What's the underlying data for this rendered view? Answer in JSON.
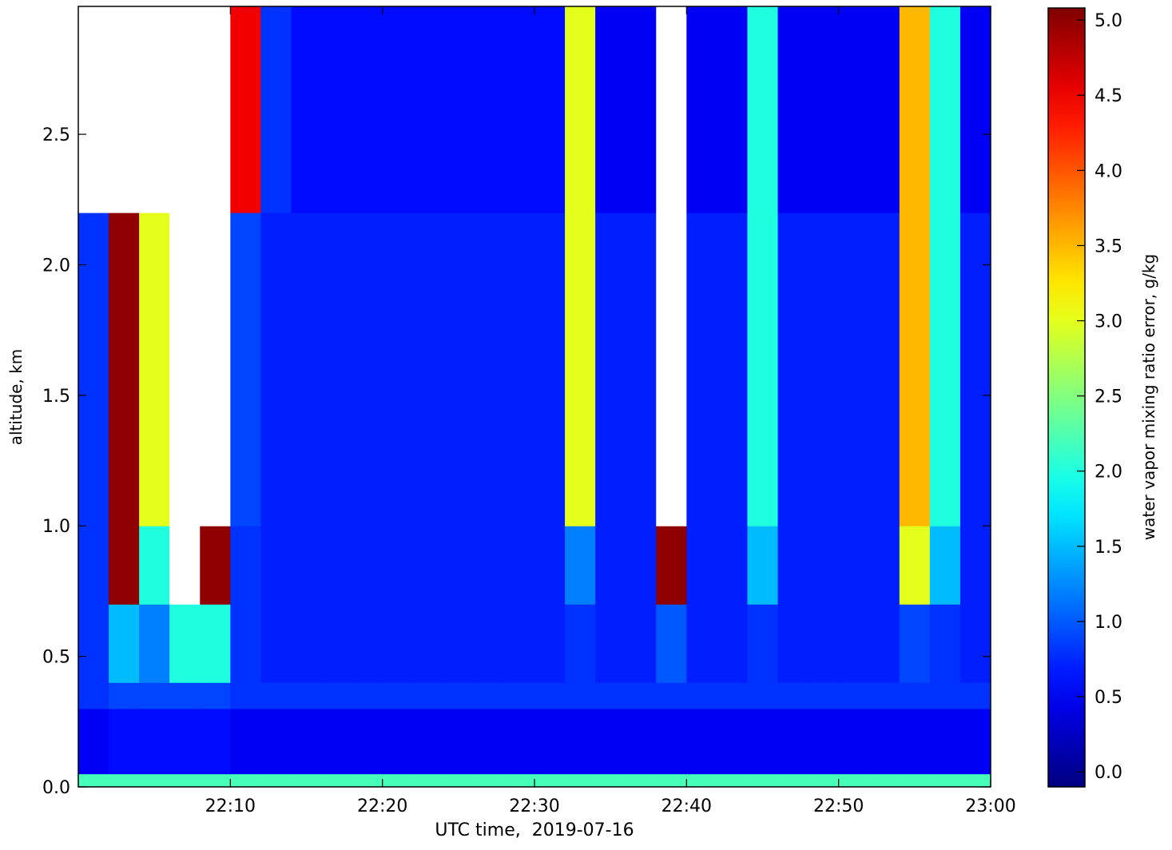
{
  "chart_data": {
    "type": "heatmap",
    "xlabel": "UTC time,  2019-07-16",
    "ylabel": "altitude, km",
    "x": [
      "22:01",
      "22:03",
      "22:05",
      "22:07",
      "22:09",
      "22:11",
      "22:13",
      "22:15",
      "22:17",
      "22:19",
      "22:21",
      "22:23",
      "22:25",
      "22:27",
      "22:29",
      "22:31",
      "22:33",
      "22:35",
      "22:37",
      "22:39",
      "22:41",
      "22:43",
      "22:45",
      "22:47",
      "22:49",
      "22:51",
      "22:53",
      "22:55",
      "22:57",
      "22:59"
    ],
    "xlim": [
      "22:00",
      "23:00"
    ],
    "xticks": [
      "22:10",
      "22:20",
      "22:30",
      "22:40",
      "22:50",
      "23:00"
    ],
    "y_bins": [
      0,
      0.05,
      0.3,
      0.4,
      0.7,
      1.0,
      2.2,
      2.99
    ],
    "ylim": [
      0,
      2.99
    ],
    "yticks": [
      {
        "value": 0,
        "label": "0.0"
      },
      0.5,
      {
        "value": 1,
        "label": "1.0"
      },
      1.5,
      {
        "value": 2,
        "label": "2.0"
      },
      2.5
    ],
    "z": [
      [
        2.2,
        2.2,
        2.2,
        2.2,
        2.2,
        2.2,
        2.2,
        2.2,
        2.2,
        2.2,
        2.2,
        2.2,
        2.2,
        2.2,
        2.2,
        2.2,
        2.2,
        2.2,
        2.2,
        2.2,
        2.2,
        2.2,
        2.2,
        2.2,
        2.2,
        2.2,
        2.2,
        2.2,
        2.2,
        2.2
      ],
      [
        0.5,
        0.6,
        0.6,
        0.6,
        0.6,
        0.5,
        0.5,
        0.5,
        0.5,
        0.5,
        0.5,
        0.5,
        0.5,
        0.5,
        0.5,
        0.5,
        0.5,
        0.5,
        0.5,
        0.5,
        0.5,
        0.5,
        0.5,
        0.5,
        0.5,
        0.5,
        0.5,
        0.5,
        0.5,
        0.5
      ],
      [
        0.8,
        0.9,
        0.9,
        0.9,
        0.9,
        0.8,
        0.8,
        0.8,
        0.8,
        0.8,
        0.8,
        0.8,
        0.8,
        0.8,
        0.8,
        0.8,
        0.8,
        0.8,
        0.8,
        0.8,
        0.8,
        0.8,
        0.8,
        0.8,
        0.8,
        0.8,
        0.8,
        0.8,
        0.8,
        0.8
      ],
      [
        0.8,
        1.5,
        1.2,
        2,
        2,
        0.8,
        0.7,
        0.7,
        0.7,
        0.7,
        0.7,
        0.7,
        0.7,
        0.7,
        0.7,
        0.7,
        0.8,
        0.7,
        0.7,
        1,
        0.7,
        0.7,
        0.8,
        0.7,
        0.7,
        0.7,
        0.7,
        0.9,
        0.8,
        0.7
      ],
      [
        0.8,
        5,
        2,
        6,
        5,
        0.8,
        0.7,
        0.7,
        0.7,
        0.7,
        0.7,
        0.7,
        0.7,
        0.7,
        0.7,
        0.7,
        1.2,
        0.7,
        0.7,
        5,
        0.7,
        0.7,
        1.5,
        0.7,
        0.7,
        0.7,
        0.7,
        3,
        1.5,
        0.7
      ],
      [
        0.8,
        5,
        3,
        6,
        6,
        0.9,
        0.7,
        0.7,
        0.7,
        0.7,
        0.7,
        0.7,
        0.7,
        0.7,
        0.7,
        0.7,
        3,
        0.7,
        0.7,
        6,
        0.7,
        0.7,
        2,
        0.7,
        0.7,
        0.7,
        0.7,
        3.5,
        2,
        0.7
      ],
      [
        6,
        6,
        6,
        6,
        6,
        4.5,
        0.8,
        0.6,
        0.6,
        0.6,
        0.6,
        0.6,
        0.6,
        0.6,
        0.6,
        0.6,
        3,
        0.5,
        0.5,
        6,
        0.5,
        0.5,
        2,
        0.5,
        0.5,
        0.5,
        0.5,
        3.5,
        2,
        0.5
      ]
    ],
    "colormap": "jet",
    "clim": [
      -0.1,
      5.08
    ],
    "under_color": "#000000",
    "over_color": "#ffffff",
    "colorbar_label": "water vapor mixing ratio error, g/kg",
    "cticks": [
      {
        "value": 0,
        "label": "0.0"
      },
      0.5,
      {
        "value": 1,
        "label": "1.0"
      },
      1.5,
      {
        "value": 2,
        "label": "2.0"
      },
      2.5,
      {
        "value": 3,
        "label": "3.0"
      },
      3.5,
      {
        "value": 4,
        "label": "4.0"
      },
      4.5,
      {
        "value": 5,
        "label": "5.0"
      }
    ]
  }
}
